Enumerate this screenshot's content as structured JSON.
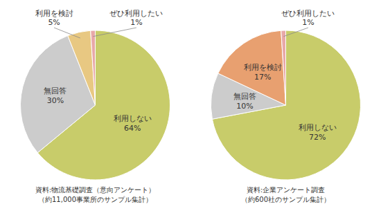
{
  "chart_data": [
    {
      "type": "pie",
      "categories": [
        "利用しない",
        "無回答",
        "利用を検討",
        "ぜひ利用したい"
      ],
      "values": [
        64,
        30,
        5,
        1
      ],
      "value_labels": [
        "64%",
        "30%",
        "5%",
        "1%"
      ],
      "colors": [
        "#c8cc6a",
        "#cccccc",
        "#e8c882",
        "#e8a8a8"
      ],
      "data_labels": true,
      "annotations": [
        "資料:物流基礎調査（意向アンケート）",
        "（約11,000事業所のサンプル集計）"
      ]
    },
    {
      "type": "pie",
      "categories": [
        "利用しない",
        "無回答",
        "利用を検討",
        "ぜひ利用したい"
      ],
      "values": [
        72,
        10,
        17,
        1
      ],
      "value_labels": [
        "72%",
        "10%",
        "17%",
        "1%"
      ],
      "colors": [
        "#c8cc6a",
        "#cccccc",
        "#e8a070",
        "#e8a8a8"
      ],
      "data_labels": true,
      "annotations": [
        "資料:企業アンケート調査",
        "（約600社のサンプル集計）"
      ]
    }
  ]
}
